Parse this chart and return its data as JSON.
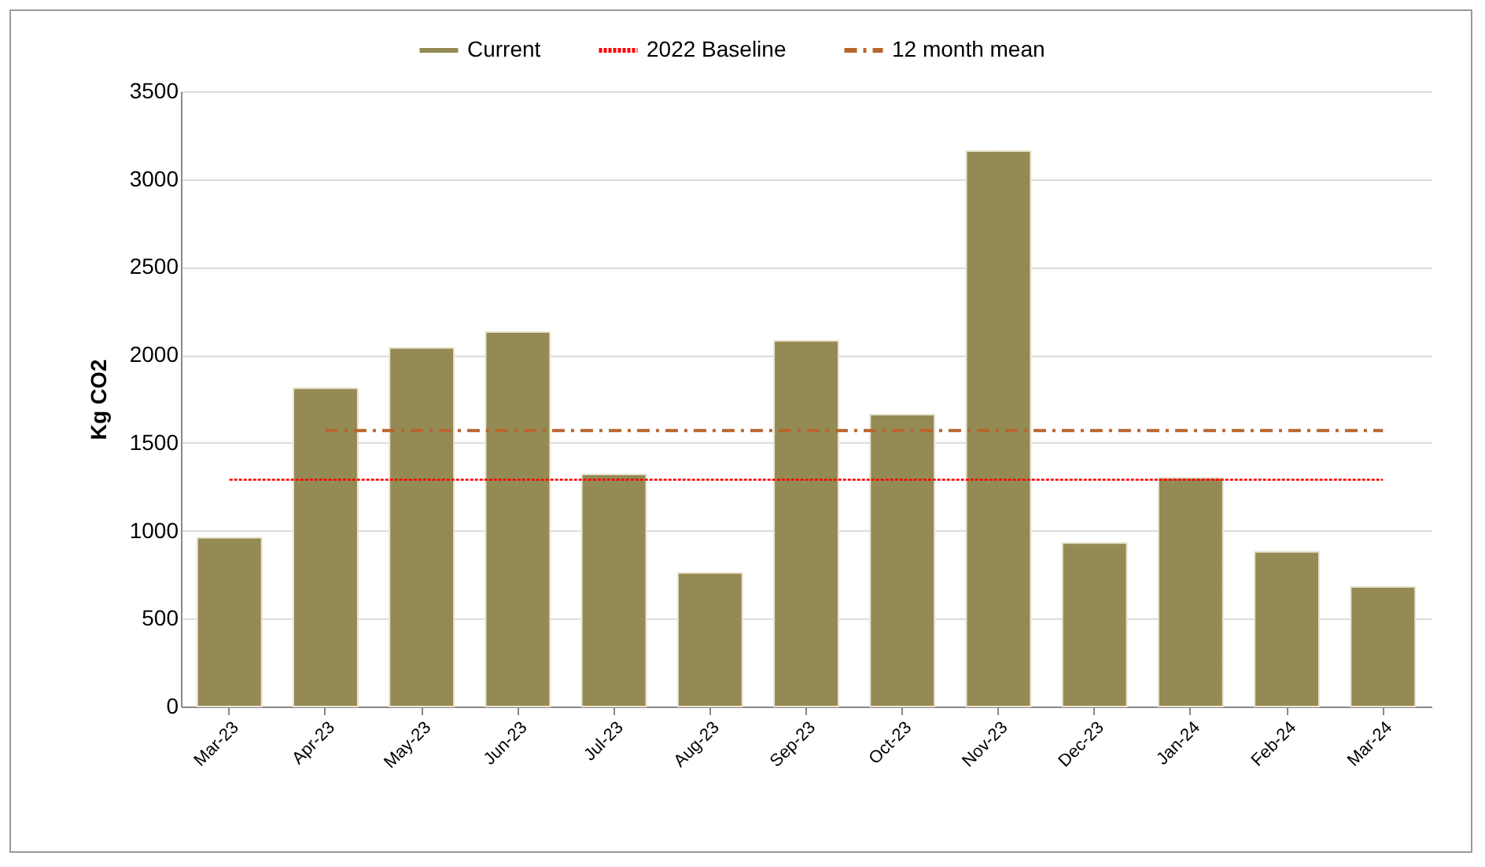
{
  "chart_data": {
    "type": "bar",
    "ylabel": "Kg CO2",
    "categories": [
      "Mar-23",
      "Apr-23",
      "May-23",
      "Jun-23",
      "Jul-23",
      "Aug-23",
      "Sep-23",
      "Oct-23",
      "Nov-23",
      "Dec-23",
      "Jan-24",
      "Feb-24",
      "Mar-24"
    ],
    "series": [
      {
        "name": "Current",
        "color": "#948a54",
        "values": [
          960,
          1810,
          2040,
          2130,
          1320,
          760,
          2080,
          1660,
          3160,
          930,
          1300,
          880,
          680
        ]
      },
      {
        "name": "2022 Baseline",
        "type": "line",
        "line_style": "dotted",
        "color": "#ff0000",
        "values": [
          1290,
          1290,
          1290,
          1290,
          1290,
          1290,
          1290,
          1290,
          1290,
          1290,
          1290,
          1290,
          1290
        ]
      },
      {
        "name": "12 month mean",
        "type": "line",
        "line_style": "dashdot",
        "color": "#b9652d",
        "values": [
          null,
          1570,
          1570,
          1570,
          1570,
          1570,
          1570,
          1570,
          1570,
          1570,
          1570,
          1570,
          1570
        ]
      }
    ],
    "ylim": [
      0,
      3500
    ],
    "yticks": [
      0,
      500,
      1000,
      1500,
      2000,
      2500,
      3000,
      3500
    ],
    "grid": "y",
    "legend": "top"
  }
}
